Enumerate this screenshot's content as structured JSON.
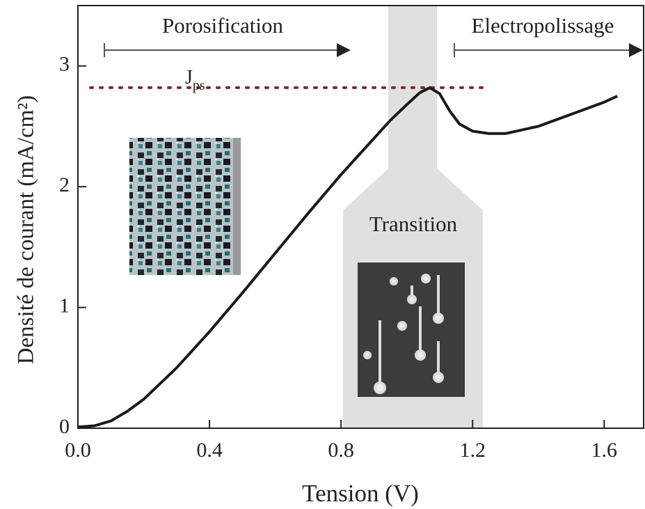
{
  "chart_data": {
    "type": "line",
    "xlabel": "Tension (V)",
    "ylabel": "Densité de courant (mA/cm²)",
    "x": [
      0,
      0.05,
      0.1,
      0.15,
      0.2,
      0.3,
      0.4,
      0.5,
      0.6,
      0.7,
      0.8,
      0.9,
      0.95,
      1.0,
      1.04,
      1.07,
      1.1,
      1.13,
      1.16,
      1.2,
      1.25,
      1.3,
      1.4,
      1.5,
      1.6,
      1.64
    ],
    "series": [
      {
        "color": "#1a1a1a",
        "values": [
          0.01,
          0.02,
          0.06,
          0.14,
          0.24,
          0.5,
          0.8,
          1.12,
          1.45,
          1.78,
          2.1,
          2.4,
          2.55,
          2.68,
          2.78,
          2.82,
          2.77,
          2.63,
          2.52,
          2.46,
          2.44,
          2.44,
          2.5,
          2.6,
          2.7,
          2.75
        ]
      }
    ],
    "xlim": [
      0,
      1.72
    ],
    "ylim": [
      0,
      3.5
    ],
    "xticks": [
      {
        "value": 0,
        "label": "0.0"
      },
      0.4,
      0.8,
      1.2,
      1.6
    ],
    "yticks": [
      0,
      1,
      2,
      3
    ],
    "threshold": {
      "label": "J",
      "subscript": "ps",
      "value": 2.82,
      "color": "#7a2a2a"
    },
    "annotations": [
      "Porosification",
      "Transition",
      "Electropolissage"
    ]
  }
}
